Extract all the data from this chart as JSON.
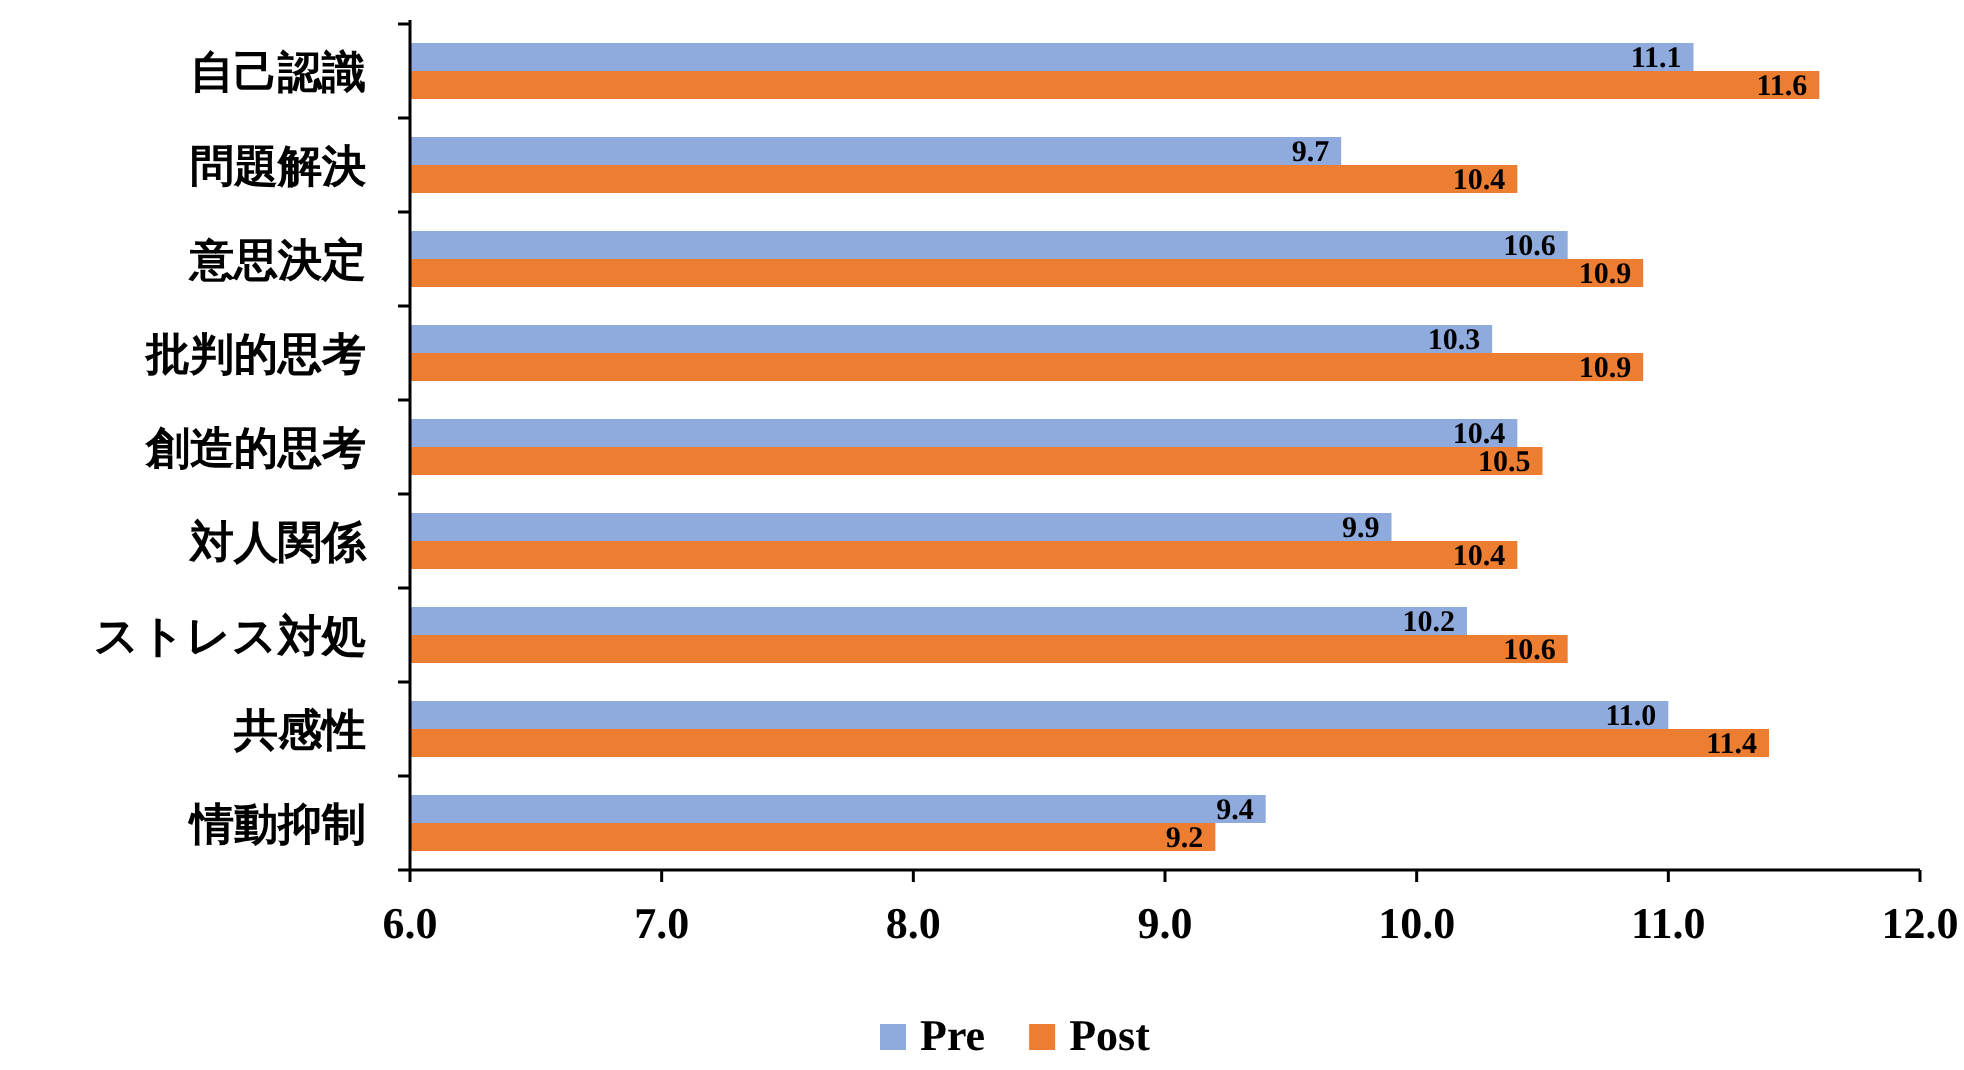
{
  "chart_data": {
    "type": "bar",
    "orientation": "horizontal",
    "categories": [
      "自己認識",
      "問題解決",
      "意思決定",
      "批判的思考",
      "創造的思考",
      "対人関係",
      "ストレス対処",
      "共感性",
      "情動抑制"
    ],
    "series": [
      {
        "name": "Pre",
        "color": "#8faadc",
        "values": [
          11.1,
          9.7,
          10.6,
          10.3,
          10.4,
          9.9,
          10.2,
          11.0,
          9.4
        ],
        "value_labels": [
          "11.1",
          "9.7",
          "10.6",
          "10.3",
          "10.4",
          "9.9",
          "10.2",
          "11.0",
          "9.4"
        ]
      },
      {
        "name": "Post",
        "color": "#ed7d31",
        "values": [
          11.6,
          10.4,
          10.9,
          10.9,
          10.5,
          10.4,
          10.6,
          11.4,
          9.2
        ],
        "value_labels": [
          "11.6",
          "10.4",
          "10.9",
          "10.9",
          "10.5",
          "10.4",
          "10.6",
          "11.4",
          "9.2"
        ]
      }
    ],
    "xlim": [
      6,
      12
    ],
    "xticks": [
      {
        "value": 6,
        "label": "6.0"
      },
      {
        "value": 7,
        "label": "7.0"
      },
      {
        "value": 8,
        "label": "8.0"
      },
      {
        "value": 9,
        "label": "9.0"
      },
      {
        "value": 10,
        "label": "10.0"
      },
      {
        "value": 11,
        "label": "11.0"
      },
      {
        "value": 12,
        "label": "12.0"
      }
    ],
    "legend": "bottom",
    "grid": false
  }
}
